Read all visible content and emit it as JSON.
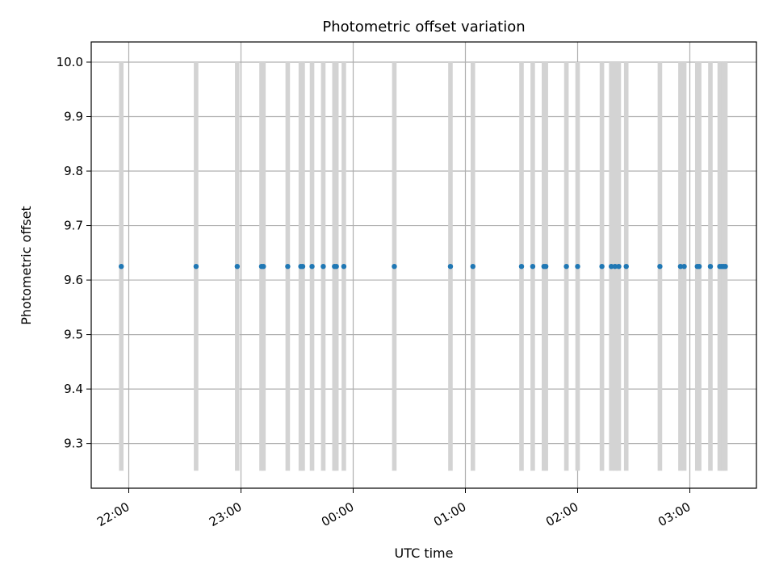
{
  "chart_data": {
    "type": "scatter",
    "title": "Photometric offset variation",
    "xlabel": "UTC time",
    "ylabel": "Photometric offset",
    "x_tick_labels": [
      "22:00",
      "23:00",
      "00:00",
      "01:00",
      "02:00",
      "03:00"
    ],
    "y_tick_labels": [
      "9.3",
      "9.4",
      "9.5",
      "9.6",
      "9.7",
      "9.8",
      "9.9",
      "10.0"
    ],
    "ylim": [
      9.218,
      10.037
    ],
    "grid": true,
    "series_color": "#1f77b4",
    "band_color": "#d3d3d3",
    "value": 9.625,
    "points_utc": [
      "21:56",
      "22:36",
      "22:58",
      "23:11",
      "23:12",
      "23:25",
      "23:32",
      "23:33",
      "23:38",
      "23:44",
      "23:50",
      "23:51",
      "23:55",
      "00:22",
      "00:52",
      "01:04",
      "01:30",
      "01:36",
      "01:42",
      "01:43",
      "01:54",
      "02:00",
      "02:13",
      "02:18",
      "02:20",
      "02:22",
      "02:26",
      "02:44",
      "02:55",
      "02:57",
      "03:04",
      "03:05",
      "03:11",
      "03:16",
      "03:17",
      "03:18",
      "03:19"
    ],
    "band_range": [
      9.25,
      10.0
    ]
  }
}
